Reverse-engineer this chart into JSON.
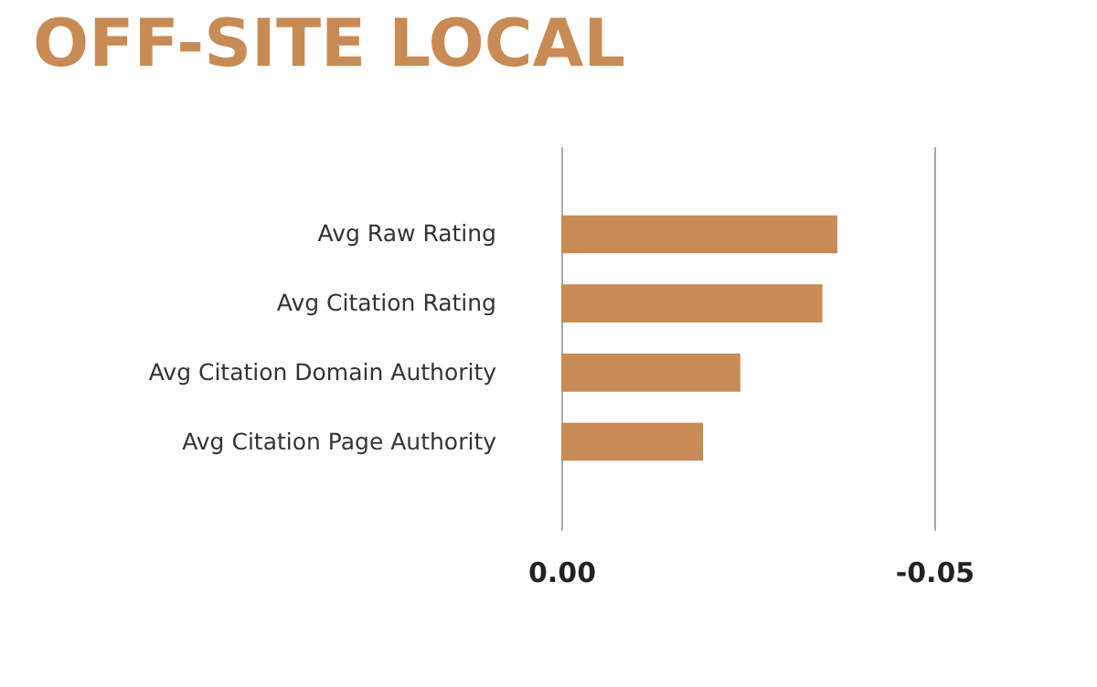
{
  "chart_data": {
    "type": "bar",
    "orientation": "horizontal",
    "title": "OFF-SITE LOCAL",
    "categories": [
      "Avg Raw Rating",
      "Avg Citation Rating",
      "Avg Citation Domain Authority",
      "Avg Citation Page Authority"
    ],
    "values": [
      -0.037,
      -0.035,
      -0.024,
      -0.019
    ],
    "color": "#c98b55",
    "xlim": [
      0,
      -0.05
    ],
    "xticks": [
      {
        "value": 0,
        "label": "0.00"
      },
      {
        "value": -0.05,
        "label": "-0.05"
      }
    ],
    "grid": "x"
  }
}
